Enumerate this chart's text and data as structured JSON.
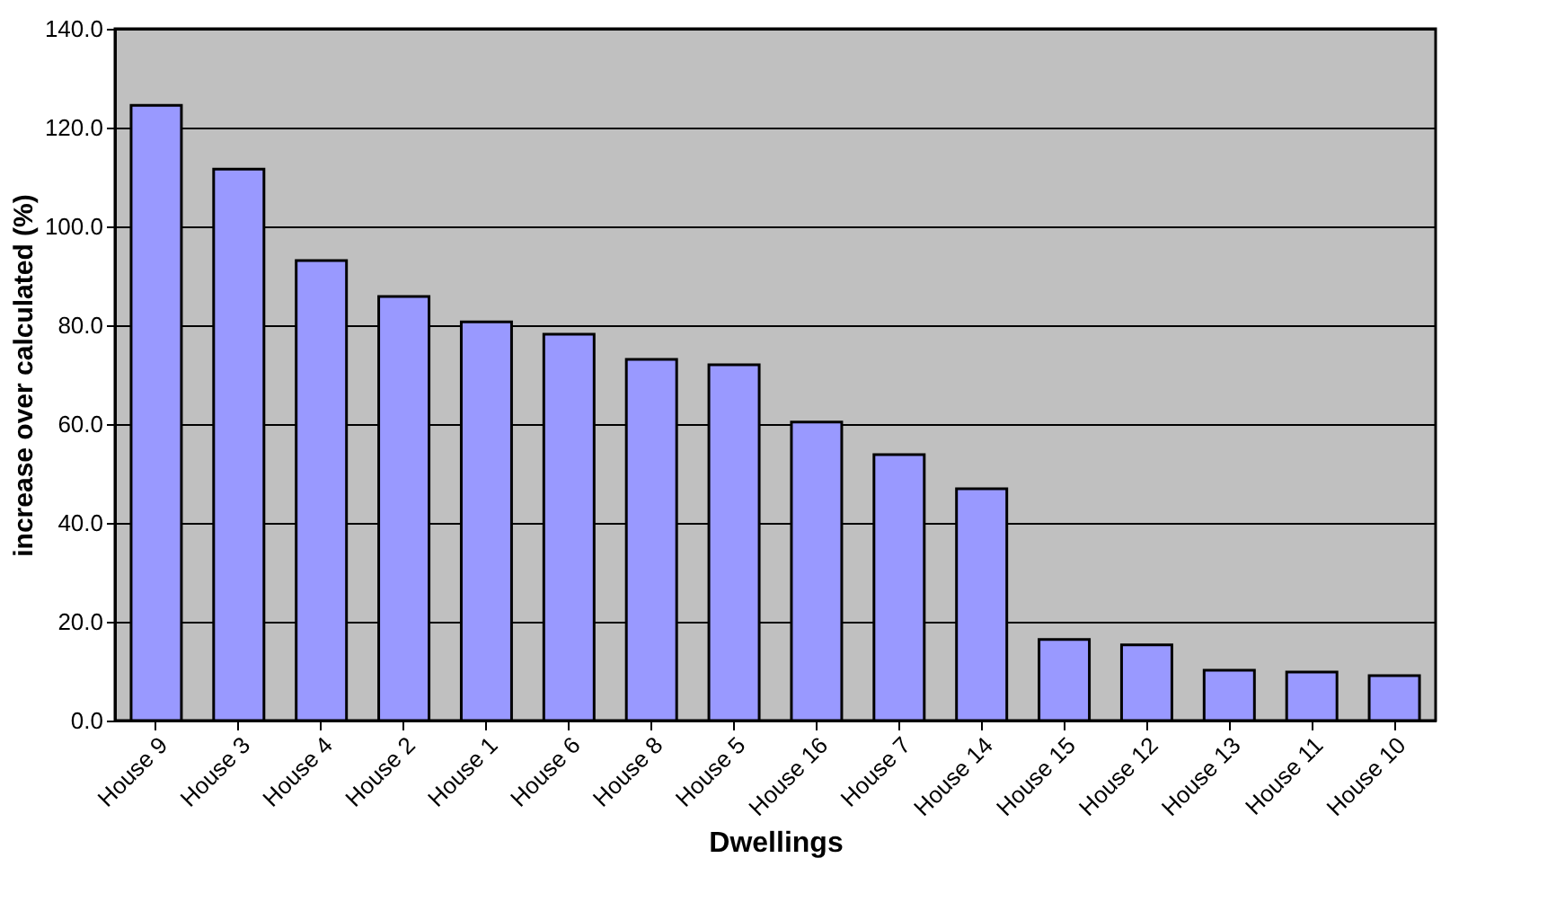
{
  "chart_data": {
    "type": "bar",
    "xlabel": "Dwellings",
    "ylabel": "increase over calculated (%)",
    "categories": [
      "House 9",
      "House 3",
      "House 4",
      "House 2",
      "House 1",
      "House 6",
      "House 8",
      "House 5",
      "House 16",
      "House 7",
      "House 14",
      "House 15",
      "House 12",
      "House 13",
      "House 11",
      "House 10"
    ],
    "values": [
      124.5,
      111.6,
      93.1,
      85.8,
      80.7,
      78.2,
      73.1,
      72.0,
      60.4,
      53.8,
      46.9,
      16.4,
      15.3,
      10.2,
      9.8,
      9.1
    ],
    "color": "#9999ff",
    "ylim": [
      0,
      140
    ],
    "yticks": [
      {
        "value": 0,
        "label": "0.0"
      },
      {
        "value": 20,
        "label": "20.0"
      },
      {
        "value": 40,
        "label": "40.0"
      },
      {
        "value": 60,
        "label": "60.0"
      },
      {
        "value": 80,
        "label": "80.0"
      },
      {
        "value": 100,
        "label": "100.0"
      },
      {
        "value": 120,
        "label": "120.0"
      },
      {
        "value": 140,
        "label": "140.0"
      }
    ],
    "grid": "y"
  }
}
